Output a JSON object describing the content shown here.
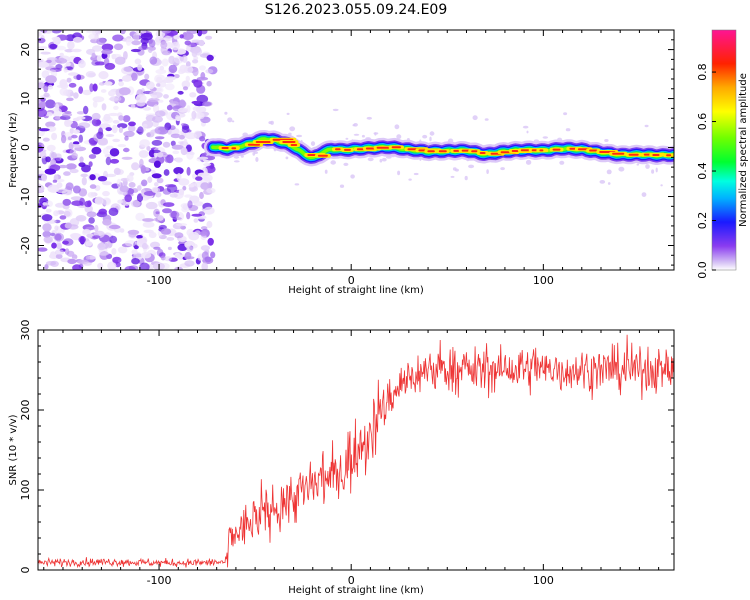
{
  "title": "S126.2023.055.09.24.E09",
  "chart_data": [
    {
      "type": "heatmap",
      "title": "S126.2023.055.09.24.E09",
      "xlabel": "Height of straight line (km)",
      "ylabel": "Frequency (Hz)",
      "xlim": [
        -163,
        168
      ],
      "ylim": [
        -25,
        24
      ],
      "x_ticks": [
        -100,
        0,
        100
      ],
      "y_ticks": [
        20,
        10,
        0,
        -10,
        -20
      ],
      "noise_region_x": [
        -163,
        -72
      ],
      "signal_onset_x": -72,
      "doppler_track": {
        "x": [
          -72,
          -65,
          -55,
          -45,
          -40,
          -35,
          -30,
          -25,
          -20,
          -15,
          -10,
          -5,
          0,
          10,
          20,
          30,
          40,
          50,
          60,
          70,
          80,
          90,
          100,
          110,
          120,
          130,
          140,
          150,
          160,
          168
        ],
        "y": [
          0.2,
          -0.3,
          0.5,
          1.8,
          1.5,
          1.0,
          0.2,
          -1.2,
          -2.2,
          -1.0,
          -0.3,
          -0.5,
          -0.4,
          -0.1,
          0.1,
          -0.4,
          -0.8,
          -0.7,
          -0.6,
          -1.4,
          -0.8,
          -0.5,
          -0.6,
          -0.2,
          -0.4,
          -1.0,
          -1.5,
          -1.4,
          -1.6,
          -1.5
        ]
      },
      "colorbar": {
        "label": "Normalized spectral amplitude",
        "range": [
          0.0,
          0.97
        ],
        "ticks": [
          "0.0",
          "0.2",
          "0.4",
          "0.6",
          "0.8"
        ],
        "tick_values": [
          0.0,
          0.2,
          0.4,
          0.6,
          0.8
        ]
      }
    },
    {
      "type": "line",
      "xlabel": "Height of straight line (km)",
      "ylabel": "SNR (10 * v/v)",
      "xlim": [
        -163,
        168
      ],
      "ylim": [
        0,
        300
      ],
      "x_ticks": [
        -100,
        0,
        100
      ],
      "y_ticks": [
        0,
        100,
        200,
        300
      ],
      "color": "#ee3333",
      "series": [
        {
          "name": "SNR",
          "x": [
            -163,
            -140,
            -120,
            -100,
            -80,
            -65,
            -63,
            -55,
            -45,
            -35,
            -25,
            -15,
            -5,
            5,
            10,
            15,
            20,
            25,
            30,
            35,
            40,
            45,
            50,
            60,
            70,
            80,
            90,
            100,
            110,
            120,
            130,
            140,
            150,
            160,
            168
          ],
          "y": [
            9,
            10,
            10,
            9,
            9,
            10,
            40,
            55,
            70,
            85,
            98,
            110,
            125,
            155,
            175,
            195,
            215,
            230,
            240,
            245,
            250,
            250,
            252,
            250,
            250,
            250,
            250,
            250,
            250,
            250,
            250,
            250,
            250,
            250,
            250
          ]
        }
      ]
    }
  ]
}
